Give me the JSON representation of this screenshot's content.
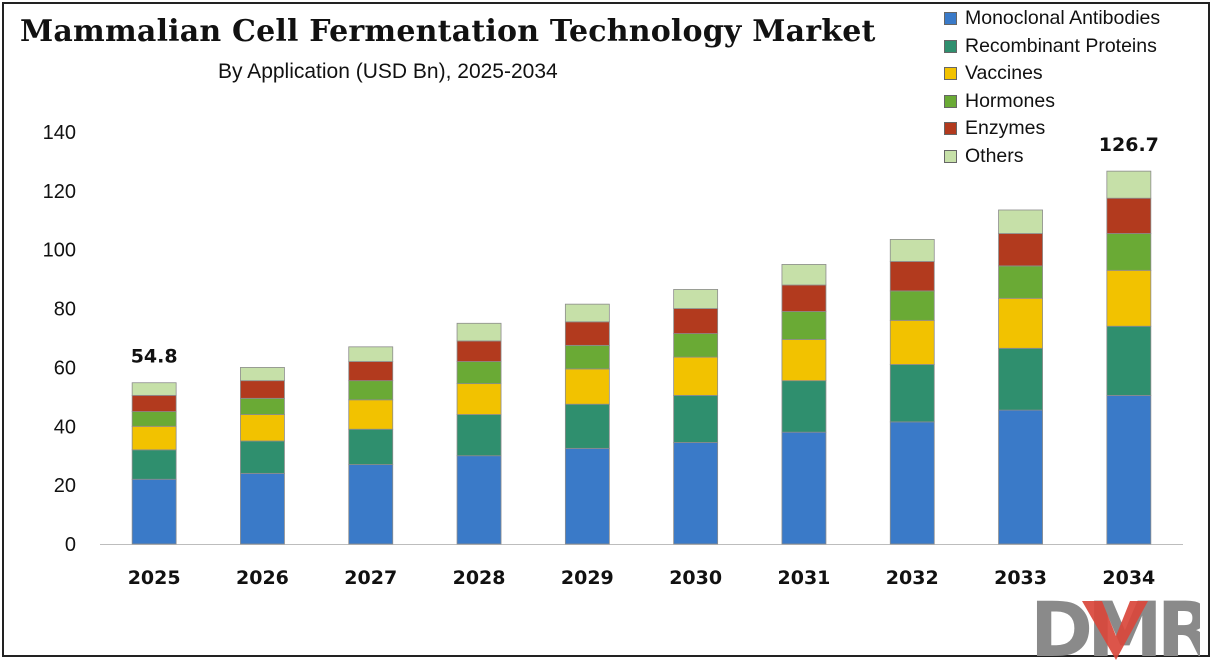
{
  "chart_data": {
    "type": "bar",
    "stacked": true,
    "title": "Mammalian Cell Fermentation Technology Market",
    "subtitle": "By Application (USD Bn), 2025-2034",
    "xlabel": "",
    "ylabel": "",
    "categories": [
      "2025",
      "2026",
      "2027",
      "2028",
      "2029",
      "2030",
      "2031",
      "2032",
      "2033",
      "2034"
    ],
    "ylim": [
      0,
      140
    ],
    "yticks": [
      0,
      20,
      40,
      60,
      80,
      100,
      120,
      140
    ],
    "grid": false,
    "legend_position": "top-right",
    "series": [
      {
        "name": "Monoclonal Antibodies",
        "color": "#3a7ac8",
        "values": [
          22.0,
          24.0,
          27.0,
          30.0,
          32.5,
          34.5,
          38.0,
          41.5,
          45.5,
          50.5
        ]
      },
      {
        "name": "Recombinant Proteins",
        "color": "#2f8f6e",
        "values": [
          10.0,
          11.0,
          12.0,
          14.0,
          15.0,
          16.0,
          17.5,
          19.5,
          21.0,
          23.5
        ]
      },
      {
        "name": "Vaccines",
        "color": "#f2c200",
        "values": [
          8.0,
          9.0,
          10.0,
          10.5,
          12.0,
          13.0,
          14.0,
          15.0,
          17.0,
          19.0
        ]
      },
      {
        "name": "Hormones",
        "color": "#6aaa35",
        "values": [
          5.0,
          5.5,
          6.5,
          7.5,
          8.0,
          8.0,
          9.5,
          10.0,
          11.0,
          12.5
        ]
      },
      {
        "name": "Enzymes",
        "color": "#b23a1e",
        "values": [
          5.5,
          6.0,
          6.5,
          7.0,
          8.0,
          8.5,
          9.0,
          10.0,
          11.0,
          12.0
        ]
      },
      {
        "name": "Others",
        "color": "#c6e0a8",
        "values": [
          4.3,
          4.5,
          5.0,
          6.0,
          6.0,
          6.5,
          7.0,
          7.5,
          8.0,
          9.2
        ]
      }
    ],
    "annotations": [
      {
        "category": "2025",
        "text": "54.8"
      },
      {
        "category": "2034",
        "text": "126.7"
      }
    ]
  },
  "logo": {
    "text": "DMR",
    "accent_color": "#d9463b"
  }
}
